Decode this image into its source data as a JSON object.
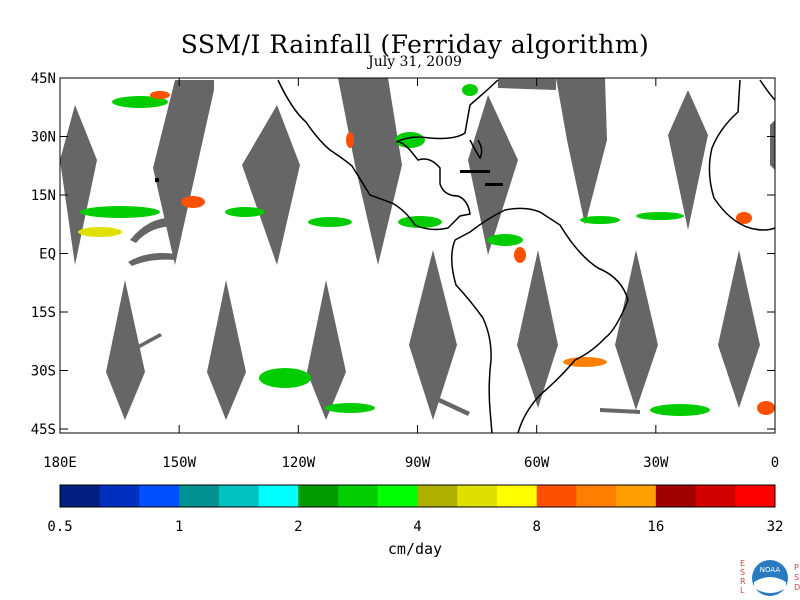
{
  "header": {
    "title": "SSM/I Rainfall (Ferriday algorithm)",
    "date": "July 31, 2009"
  },
  "map": {
    "lon_range": [
      -180,
      0
    ],
    "lat_range": [
      -47,
      45
    ],
    "lat_ticks": [
      "45N",
      "30N",
      "15N",
      "EQ",
      "15S",
      "30S",
      "45S"
    ],
    "lon_ticks": [
      "180E",
      "150W",
      "120W",
      "90W",
      "60W",
      "30W",
      "0"
    ],
    "swath_gap_color": "#666666",
    "coastline_color": "#000000"
  },
  "colorbar": {
    "units": "cm/day",
    "labels": [
      "0.5",
      "1",
      "2",
      "4",
      "8",
      "16",
      "32"
    ],
    "colors": [
      "#002080",
      "#0030c0",
      "#0050ff",
      "#009090",
      "#00c0c0",
      "#00ffff",
      "#009900",
      "#00cc00",
      "#00ff00",
      "#b0b000",
      "#e0e000",
      "#ffff00",
      "#ff5000",
      "#ff8000",
      "#ffa000",
      "#a00000",
      "#d00000",
      "#ff0000"
    ]
  },
  "logo": {
    "left_letters": "ESRL",
    "right_letters": "PSD",
    "badge_text": "NOAA"
  }
}
